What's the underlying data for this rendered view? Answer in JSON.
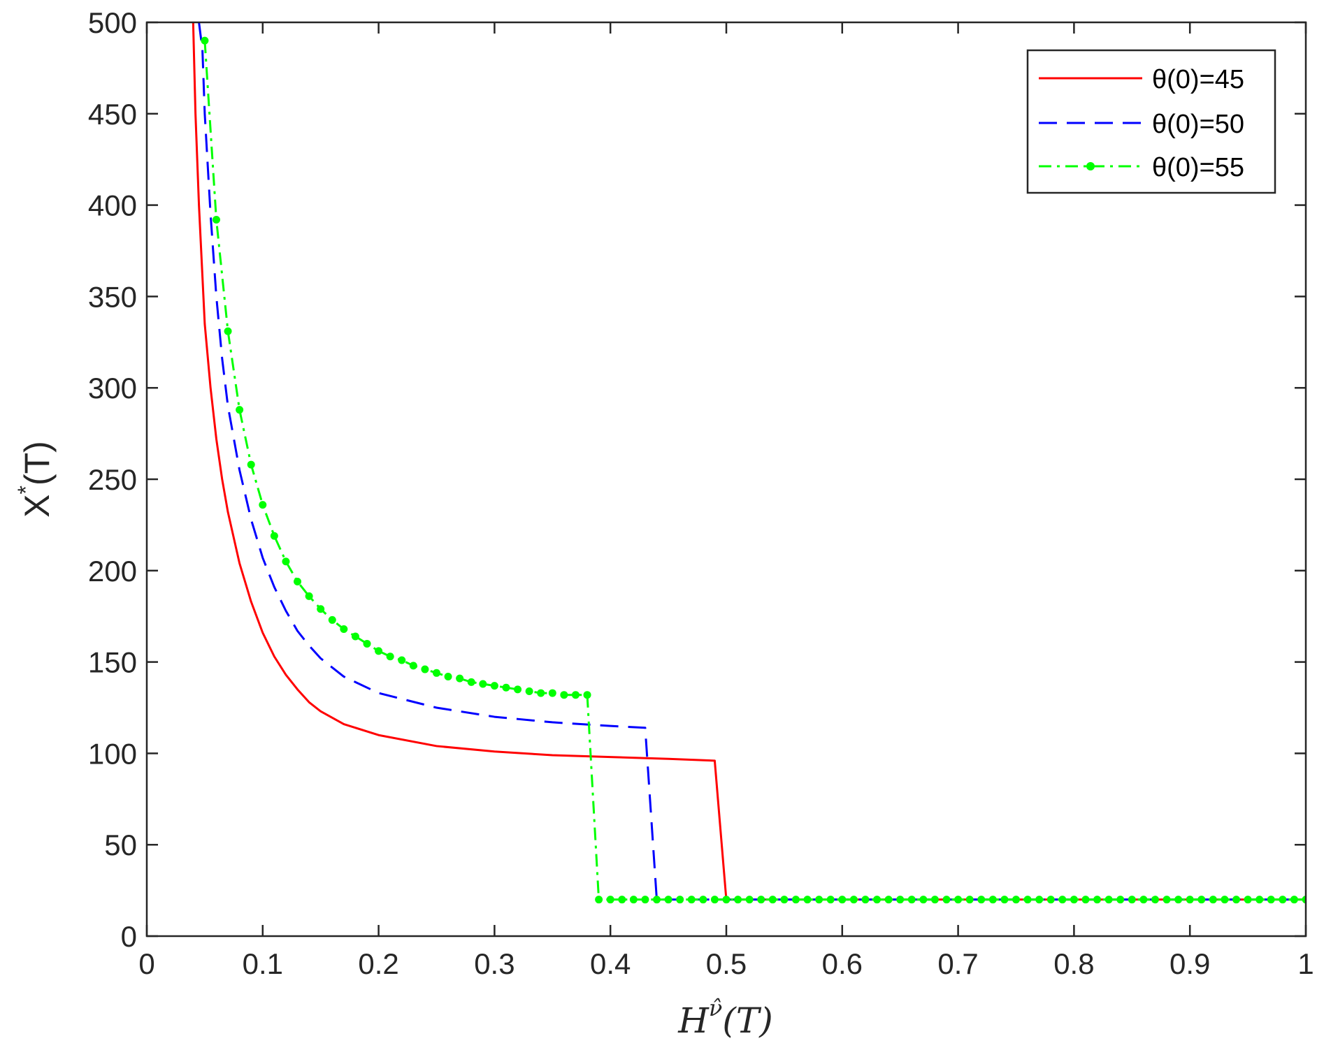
{
  "chart_data": {
    "type": "line",
    "title": "",
    "xlabel_main": "H",
    "xlabel_sup": "ν̂",
    "xlabel_arg": "(T)",
    "ylabel_main": "X",
    "ylabel_sup": "*",
    "ylabel_arg": "(T)",
    "xlim": [
      0,
      1
    ],
    "ylim": [
      0,
      500
    ],
    "xticks": [
      0,
      0.1,
      0.2,
      0.3,
      0.4,
      0.5,
      0.6,
      0.7,
      0.8,
      0.9,
      1
    ],
    "xtick_labels": [
      "0",
      "0.1",
      "0.2",
      "0.3",
      "0.4",
      "0.5",
      "0.6",
      "0.7",
      "0.8",
      "0.9",
      "1"
    ],
    "yticks": [
      0,
      50,
      100,
      150,
      200,
      250,
      300,
      350,
      400,
      450,
      500
    ],
    "ytick_labels": [
      "0",
      "50",
      "100",
      "150",
      "200",
      "250",
      "300",
      "350",
      "400",
      "450",
      "500"
    ],
    "grid": false,
    "legend_position": "top-right",
    "series": [
      {
        "name": "θ(0)=45",
        "color": "#ff0000",
        "style": "solid",
        "marker": "none",
        "x": [
          0.04,
          0.042,
          0.045,
          0.05,
          0.055,
          0.06,
          0.065,
          0.07,
          0.08,
          0.09,
          0.1,
          0.11,
          0.12,
          0.13,
          0.14,
          0.15,
          0.17,
          0.2,
          0.25,
          0.3,
          0.35,
          0.4,
          0.45,
          0.49,
          0.5,
          0.6,
          0.7,
          0.8,
          0.9,
          1.0
        ],
        "y": [
          500,
          450,
          400,
          335,
          300,
          272,
          250,
          232,
          204,
          183,
          166,
          153,
          143,
          135,
          128,
          123,
          116,
          110,
          104,
          101,
          99,
          98,
          97,
          96,
          20,
          20,
          20,
          20,
          20,
          20
        ]
      },
      {
        "name": "θ(0)=50",
        "color": "#0000ff",
        "style": "dashed",
        "marker": "none",
        "x": [
          0.045,
          0.048,
          0.05,
          0.055,
          0.06,
          0.065,
          0.07,
          0.08,
          0.09,
          0.1,
          0.11,
          0.12,
          0.13,
          0.14,
          0.15,
          0.17,
          0.2,
          0.25,
          0.3,
          0.35,
          0.4,
          0.43,
          0.44,
          0.6,
          0.8,
          1.0
        ],
        "y": [
          500,
          485,
          450,
          395,
          350,
          316,
          290,
          255,
          228,
          207,
          191,
          178,
          167,
          159,
          152,
          142,
          133,
          125,
          120,
          117,
          115,
          114,
          20,
          20,
          20,
          20
        ]
      },
      {
        "name": "θ(0)=55",
        "color": "#00ff00",
        "style": "dashdot",
        "marker": "dot",
        "x": [
          0.05,
          0.06,
          0.07,
          0.08,
          0.09,
          0.1,
          0.11,
          0.12,
          0.13,
          0.14,
          0.15,
          0.16,
          0.17,
          0.18,
          0.19,
          0.2,
          0.21,
          0.22,
          0.23,
          0.24,
          0.25,
          0.26,
          0.27,
          0.28,
          0.29,
          0.3,
          0.31,
          0.32,
          0.33,
          0.34,
          0.35,
          0.36,
          0.37,
          0.38,
          0.39,
          0.4,
          0.41,
          0.42,
          0.43,
          0.44,
          0.45,
          0.46,
          0.47,
          0.48,
          0.49,
          0.5,
          0.51,
          0.52,
          0.53,
          0.54,
          0.55,
          0.56,
          0.57,
          0.58,
          0.59,
          0.6,
          0.61,
          0.62,
          0.63,
          0.64,
          0.65,
          0.66,
          0.67,
          0.68,
          0.69,
          0.7,
          0.71,
          0.72,
          0.73,
          0.74,
          0.75,
          0.76,
          0.77,
          0.78,
          0.79,
          0.8,
          0.81,
          0.82,
          0.83,
          0.84,
          0.85,
          0.86,
          0.87,
          0.88,
          0.89,
          0.9,
          0.91,
          0.92,
          0.93,
          0.94,
          0.95,
          0.96,
          0.97,
          0.98,
          0.99,
          1.0
        ],
        "y": [
          490,
          392,
          331,
          288,
          258,
          236,
          219,
          205,
          194,
          186,
          179,
          173,
          168,
          164,
          160,
          156,
          153,
          151,
          148,
          146,
          144,
          142,
          141,
          139,
          138,
          137,
          136,
          135,
          134,
          133,
          133,
          132,
          132,
          132,
          20,
          20,
          20,
          20,
          20,
          20,
          20,
          20,
          20,
          20,
          20,
          20,
          20,
          20,
          20,
          20,
          20,
          20,
          20,
          20,
          20,
          20,
          20,
          20,
          20,
          20,
          20,
          20,
          20,
          20,
          20,
          20,
          20,
          20,
          20,
          20,
          20,
          20,
          20,
          20,
          20,
          20,
          20,
          20,
          20,
          20,
          20,
          20,
          20,
          20,
          20,
          20,
          20,
          20,
          20,
          20,
          20,
          20,
          20,
          20,
          20,
          20
        ]
      }
    ]
  }
}
